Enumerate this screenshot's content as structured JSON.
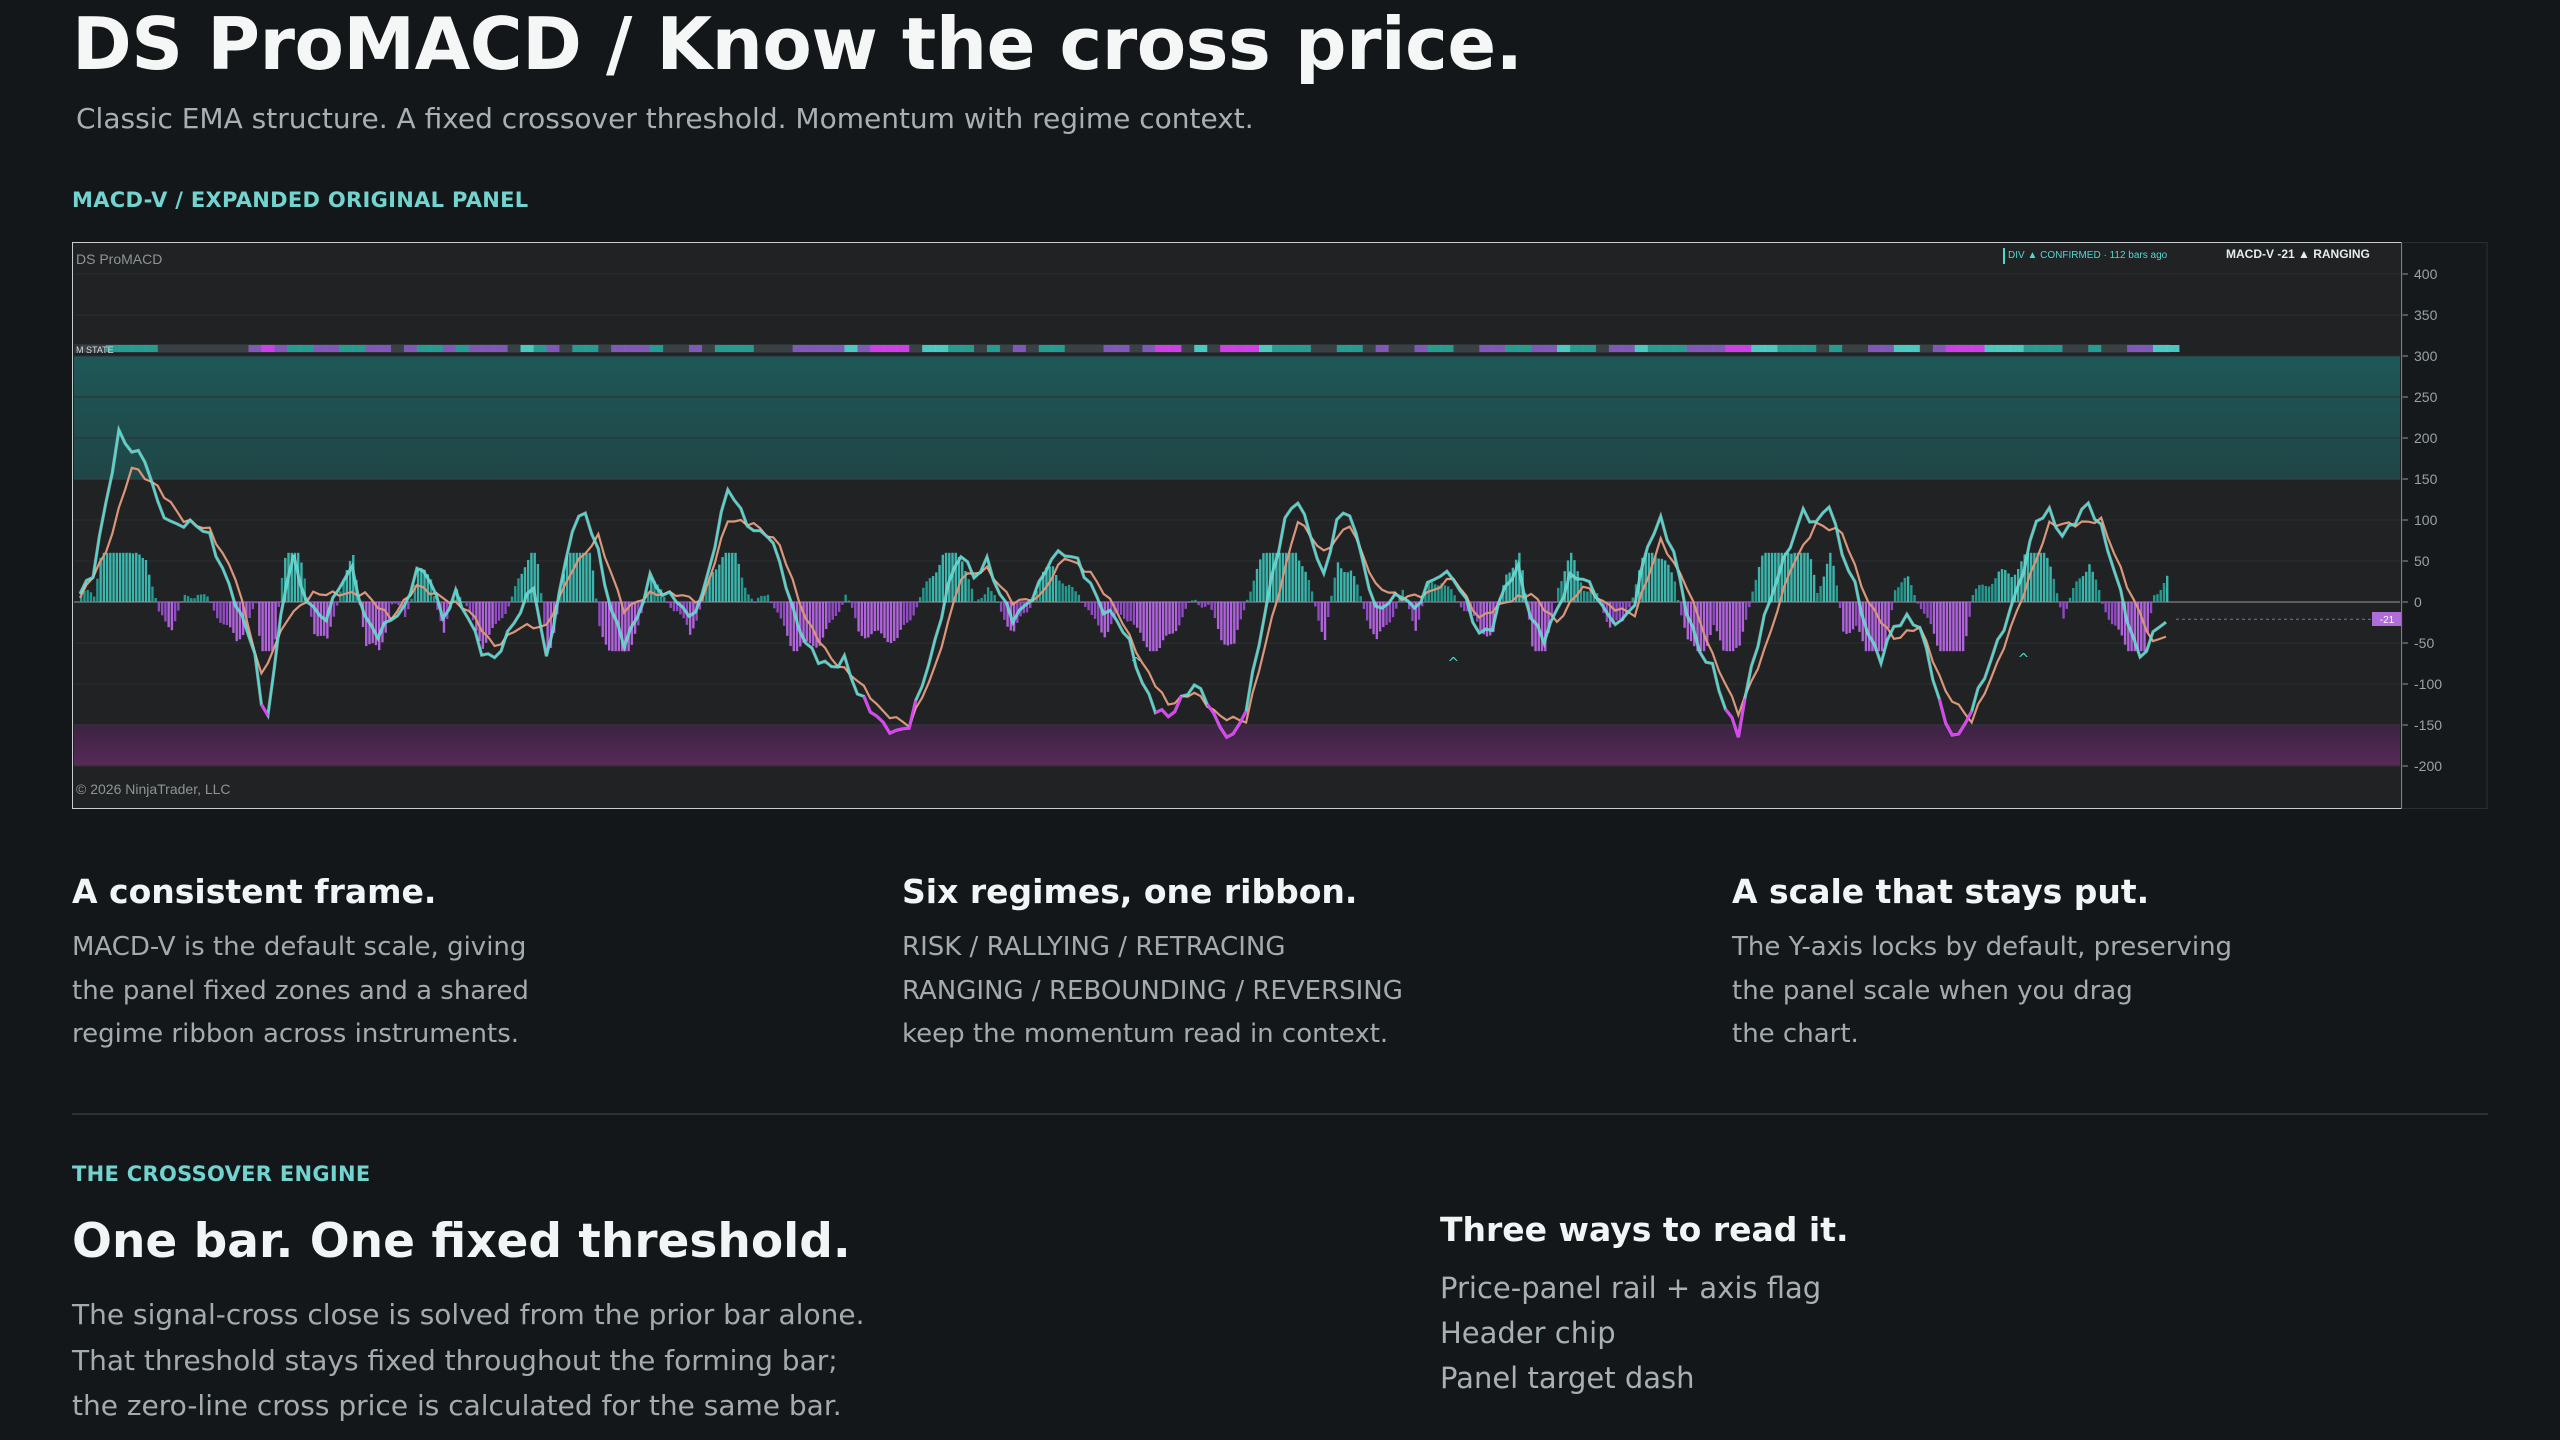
{
  "hero": {
    "title": "DS ProMACD / Know the cross price.",
    "subtitle": "Classic EMA structure. A fixed crossover threshold. Momentum with regime context."
  },
  "chart_section": {
    "kicker": "MACD-V / EXPANDED ORIGINAL PANEL"
  },
  "chart_data": {
    "type": "line",
    "panel_title": "DS ProMACD",
    "ribbon_label": "M STATE",
    "copyright": "© 2026 NinjaTrader, LLC",
    "header_chip": {
      "divergence": "DIV ▲ CONFIRMED · 112 bars ago",
      "readout": "MACD-V -21  ▲ RANGING"
    },
    "value_flag": "-21",
    "ylim": [
      -245,
      430
    ],
    "yticks": [
      400,
      350,
      300,
      250,
      200,
      150,
      100,
      50,
      0,
      -50,
      -100,
      -150,
      -200
    ],
    "zones": [
      {
        "from": 150,
        "to": 300,
        "color": "#1f5a5a"
      },
      {
        "from": -200,
        "to": -150,
        "color": "#5a2a5a"
      }
    ],
    "x_count": 260,
    "series": [
      {
        "role": "macd",
        "color": "#4fd8cf",
        "points": [
          [
            0,
            10
          ],
          [
            2,
            35
          ],
          [
            4,
            120
          ],
          [
            6,
            205
          ],
          [
            8,
            185
          ],
          [
            10,
            175
          ],
          [
            12,
            120
          ],
          [
            14,
            95
          ],
          [
            16,
            95
          ],
          [
            18,
            95
          ],
          [
            20,
            80
          ],
          [
            22,
            40
          ],
          [
            24,
            0
          ],
          [
            26,
            -40
          ],
          [
            27,
            -60
          ],
          [
            28,
            -130
          ],
          [
            29,
            -135
          ],
          [
            30,
            -80
          ],
          [
            31,
            -20
          ],
          [
            32,
            30
          ],
          [
            33,
            55
          ],
          [
            34,
            20
          ],
          [
            36,
            -10
          ],
          [
            38,
            -20
          ],
          [
            40,
            20
          ],
          [
            42,
            40
          ],
          [
            44,
            -20
          ],
          [
            46,
            -40
          ],
          [
            48,
            -20
          ],
          [
            50,
            -10
          ],
          [
            52,
            40
          ],
          [
            54,
            30
          ],
          [
            56,
            -20
          ],
          [
            58,
            10
          ],
          [
            60,
            -20
          ],
          [
            62,
            -60
          ],
          [
            64,
            -70
          ],
          [
            66,
            -40
          ],
          [
            68,
            -10
          ],
          [
            70,
            20
          ],
          [
            72,
            -70
          ],
          [
            74,
            10
          ],
          [
            76,
            90
          ],
          [
            78,
            110
          ],
          [
            80,
            60
          ],
          [
            82,
            -10
          ],
          [
            84,
            -50
          ],
          [
            86,
            -20
          ],
          [
            88,
            30
          ],
          [
            90,
            10
          ],
          [
            92,
            5
          ],
          [
            94,
            -20
          ],
          [
            96,
            5
          ],
          [
            98,
            70
          ],
          [
            100,
            140
          ],
          [
            102,
            110
          ],
          [
            104,
            85
          ],
          [
            106,
            85
          ],
          [
            108,
            50
          ],
          [
            110,
            -10
          ],
          [
            112,
            -50
          ],
          [
            114,
            -70
          ],
          [
            116,
            -80
          ],
          [
            118,
            -70
          ],
          [
            120,
            -110
          ],
          [
            122,
            -130
          ],
          [
            124,
            -150
          ],
          [
            126,
            -160
          ],
          [
            128,
            -150
          ],
          [
            130,
            -100
          ],
          [
            132,
            -50
          ],
          [
            134,
            20
          ],
          [
            136,
            60
          ],
          [
            138,
            30
          ],
          [
            140,
            50
          ],
          [
            142,
            10
          ],
          [
            144,
            -20
          ],
          [
            146,
            -5
          ],
          [
            148,
            20
          ],
          [
            150,
            55
          ],
          [
            152,
            60
          ],
          [
            154,
            50
          ],
          [
            156,
            20
          ],
          [
            158,
            -10
          ],
          [
            160,
            -20
          ],
          [
            162,
            -50
          ],
          [
            164,
            -100
          ],
          [
            166,
            -130
          ],
          [
            168,
            -140
          ],
          [
            170,
            -120
          ],
          [
            172,
            -100
          ],
          [
            174,
            -120
          ],
          [
            176,
            -155
          ],
          [
            178,
            -165
          ],
          [
            180,
            -130
          ],
          [
            182,
            -50
          ],
          [
            184,
            30
          ],
          [
            186,
            100
          ],
          [
            188,
            125
          ],
          [
            190,
            80
          ],
          [
            192,
            30
          ],
          [
            194,
            100
          ],
          [
            196,
            110
          ],
          [
            198,
            50
          ],
          [
            200,
            -10
          ],
          [
            202,
            0
          ],
          [
            204,
            10
          ],
          [
            206,
            -10
          ],
          [
            208,
            20
          ],
          [
            210,
            35
          ],
          [
            212,
            30
          ],
          [
            214,
            0
          ],
          [
            216,
            -40
          ],
          [
            218,
            -30
          ],
          [
            220,
            20
          ],
          [
            222,
            40
          ],
          [
            224,
            -20
          ],
          [
            226,
            -45
          ],
          [
            228,
            -10
          ],
          [
            230,
            30
          ],
          [
            232,
            30
          ],
          [
            234,
            10
          ],
          [
            236,
            -20
          ],
          [
            238,
            -25
          ],
          [
            240,
            0
          ],
          [
            242,
            70
          ],
          [
            244,
            100
          ],
          [
            246,
            60
          ],
          [
            248,
            -10
          ],
          [
            250,
            -60
          ],
          [
            252,
            -80
          ],
          [
            254,
            -130
          ],
          [
            256,
            -160
          ],
          [
            258,
            -80
          ],
          [
            260,
            -20
          ],
          [
            262,
            30
          ],
          [
            264,
            70
          ],
          [
            266,
            110
          ],
          [
            268,
            95
          ],
          [
            270,
            120
          ],
          [
            272,
            60
          ],
          [
            274,
            20
          ],
          [
            276,
            -40
          ],
          [
            278,
            -70
          ],
          [
            280,
            -30
          ],
          [
            282,
            -20
          ],
          [
            284,
            -30
          ],
          [
            286,
            -90
          ],
          [
            288,
            -150
          ],
          [
            290,
            -165
          ],
          [
            292,
            -130
          ],
          [
            294,
            -90
          ],
          [
            296,
            -50
          ],
          [
            298,
            -10
          ],
          [
            300,
            40
          ],
          [
            302,
            100
          ],
          [
            304,
            110
          ],
          [
            306,
            80
          ],
          [
            308,
            100
          ],
          [
            310,
            120
          ],
          [
            312,
            90
          ],
          [
            314,
            40
          ],
          [
            316,
            -20
          ],
          [
            318,
            -70
          ],
          [
            320,
            -40
          ],
          [
            322,
            -21
          ]
        ]
      },
      {
        "role": "signal",
        "color": "#d9967a",
        "points": [
          [
            0,
            5
          ],
          [
            4,
            60
          ],
          [
            8,
            165
          ],
          [
            12,
            140
          ],
          [
            16,
            100
          ],
          [
            20,
            88
          ],
          [
            24,
            30
          ],
          [
            28,
            -90
          ],
          [
            32,
            -20
          ],
          [
            36,
            10
          ],
          [
            40,
            10
          ],
          [
            44,
            10
          ],
          [
            48,
            -20
          ],
          [
            52,
            20
          ],
          [
            56,
            5
          ],
          [
            60,
            -10
          ],
          [
            64,
            -55
          ],
          [
            68,
            -30
          ],
          [
            72,
            -30
          ],
          [
            76,
            40
          ],
          [
            80,
            80
          ],
          [
            84,
            -10
          ],
          [
            88,
            10
          ],
          [
            92,
            10
          ],
          [
            96,
            0
          ],
          [
            100,
            100
          ],
          [
            104,
            95
          ],
          [
            108,
            70
          ],
          [
            112,
            -20
          ],
          [
            116,
            -70
          ],
          [
            120,
            -95
          ],
          [
            124,
            -135
          ],
          [
            128,
            -150
          ],
          [
            132,
            -80
          ],
          [
            136,
            30
          ],
          [
            140,
            40
          ],
          [
            144,
            0
          ],
          [
            148,
            5
          ],
          [
            152,
            55
          ],
          [
            156,
            35
          ],
          [
            160,
            -10
          ],
          [
            164,
            -75
          ],
          [
            168,
            -125
          ],
          [
            172,
            -110
          ],
          [
            176,
            -140
          ],
          [
            180,
            -145
          ],
          [
            184,
            -20
          ],
          [
            188,
            100
          ],
          [
            192,
            60
          ],
          [
            196,
            95
          ],
          [
            200,
            20
          ],
          [
            204,
            5
          ],
          [
            208,
            10
          ],
          [
            212,
            30
          ],
          [
            216,
            -20
          ],
          [
            220,
            0
          ],
          [
            224,
            10
          ],
          [
            228,
            -25
          ],
          [
            232,
            20
          ],
          [
            236,
            -5
          ],
          [
            240,
            -15
          ],
          [
            244,
            75
          ],
          [
            248,
            20
          ],
          [
            252,
            -65
          ],
          [
            256,
            -135
          ],
          [
            260,
            -60
          ],
          [
            264,
            40
          ],
          [
            268,
            95
          ],
          [
            272,
            85
          ],
          [
            276,
            0
          ],
          [
            280,
            -45
          ],
          [
            284,
            -30
          ],
          [
            288,
            -110
          ],
          [
            292,
            -145
          ],
          [
            296,
            -75
          ],
          [
            300,
            10
          ],
          [
            304,
            95
          ],
          [
            308,
            95
          ],
          [
            312,
            100
          ],
          [
            316,
            20
          ],
          [
            320,
            -50
          ],
          [
            322,
            -40
          ]
        ]
      }
    ]
  },
  "features": [
    {
      "title": "A consistent frame.",
      "lines": [
        "MACD-V is the default scale, giving",
        "the panel fixed zones and a shared",
        "regime ribbon across instruments."
      ]
    },
    {
      "title": "Six regimes, one ribbon.",
      "lines": [
        "RISK / RALLYING / RETRACING",
        "RANGING / REBOUNDING / REVERSING",
        "keep the momentum read in context."
      ]
    },
    {
      "title": "A scale that stays put.",
      "lines": [
        "The Y-axis locks by default, preserving",
        "the panel scale when you drag",
        "the chart."
      ]
    }
  ],
  "engine": {
    "kicker": "THE CROSSOVER ENGINE",
    "title": "One bar. One fixed threshold.",
    "lines": [
      "The signal-cross close is solved from the prior bar alone.",
      "That threshold stays fixed throughout the forming bar;",
      "the zero-line cross price is calculated for the same bar."
    ]
  },
  "three_ways": {
    "title": "Three ways to read it.",
    "items": [
      "Price-panel rail + axis flag",
      "Header chip",
      "Panel target dash"
    ]
  },
  "colors": {
    "background": "#131719",
    "accent": "#72d3cf",
    "positive_hist": "#26a69a",
    "negative_hist": "#9c4fd6",
    "extreme_negative": "#e040fb"
  }
}
